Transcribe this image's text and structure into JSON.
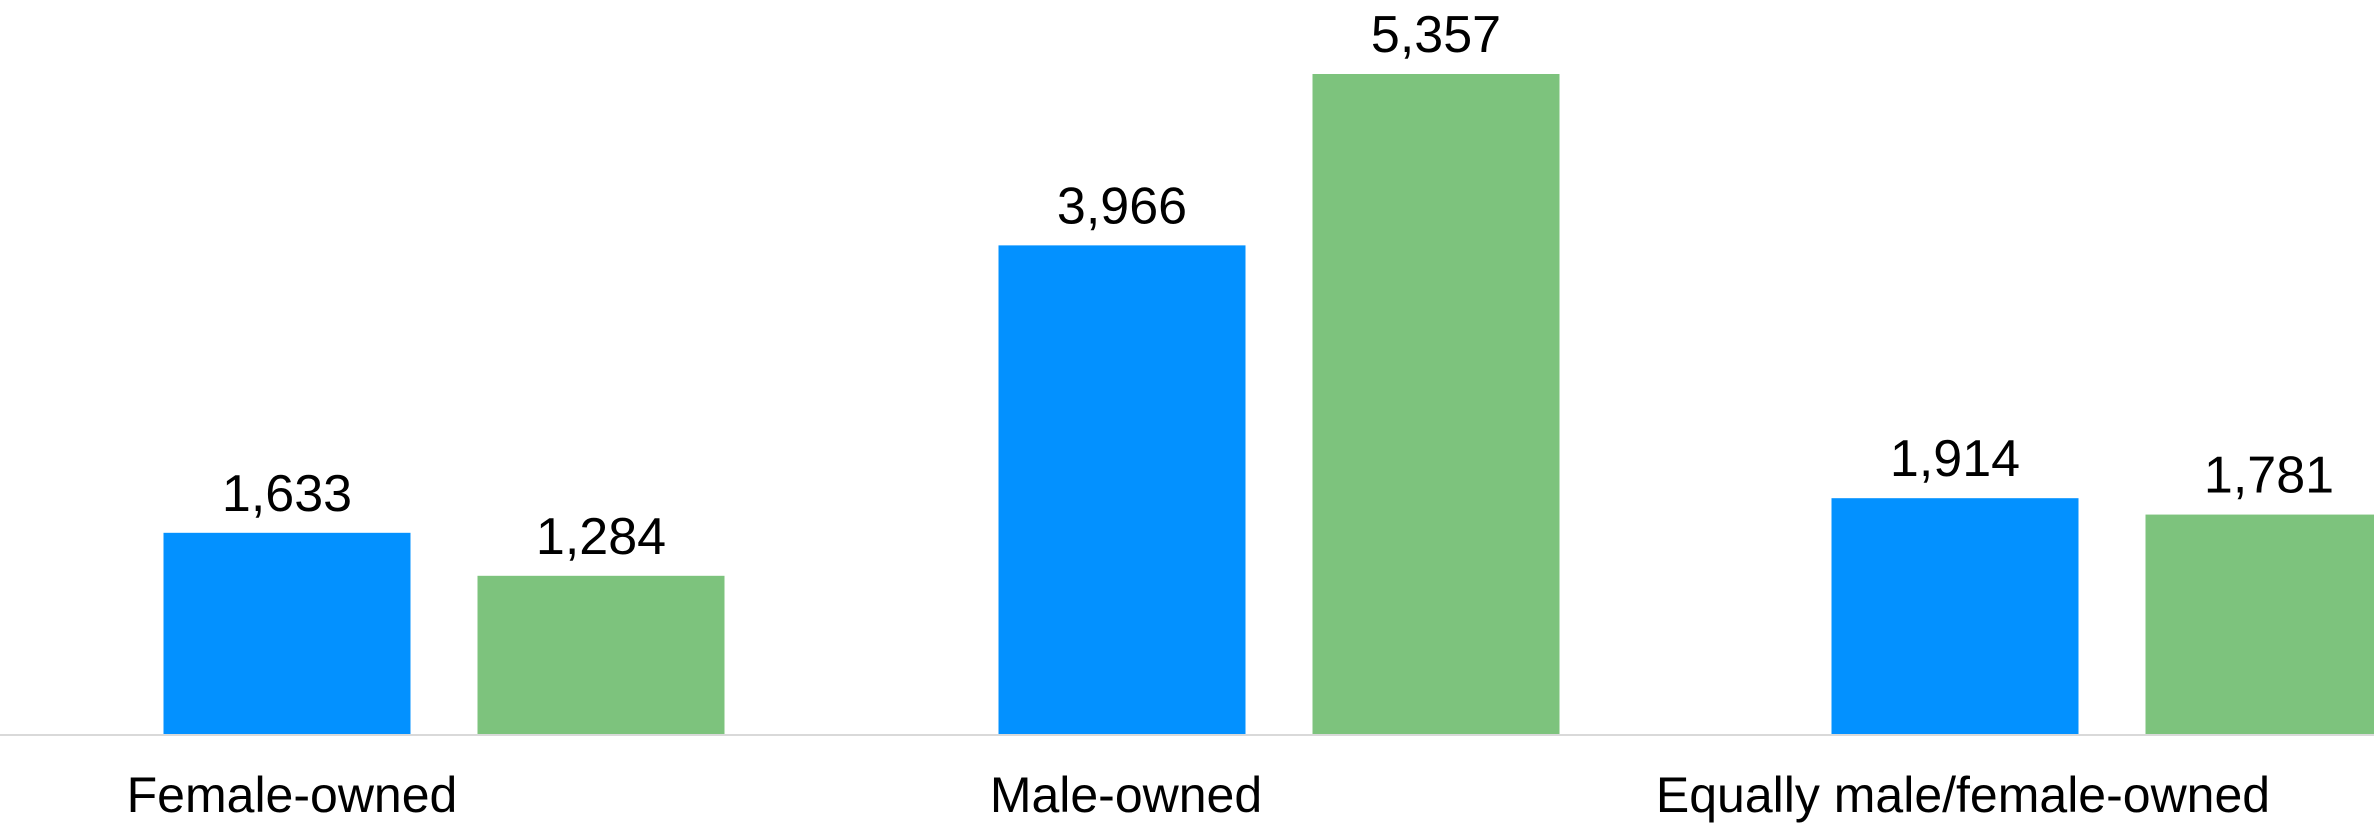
{
  "chart_data": {
    "type": "bar",
    "categories": [
      "Female-owned",
      "Male-owned",
      "Equally male/female-owned"
    ],
    "series": [
      {
        "values": [
          1633,
          3966,
          1914
        ],
        "labels": [
          "1,633",
          "3,966",
          "1,914"
        ],
        "color": "#0391FF"
      },
      {
        "values": [
          1284,
          5357,
          1781
        ],
        "labels": [
          "1,284",
          "5,357",
          "1,781"
        ],
        "color": "#7DC37D"
      }
    ],
    "title": "",
    "xlabel": "",
    "ylabel": "",
    "ylim": [
      0,
      5357
    ],
    "grid": false,
    "legend": "none",
    "axis_color": "#D9D9D9"
  }
}
